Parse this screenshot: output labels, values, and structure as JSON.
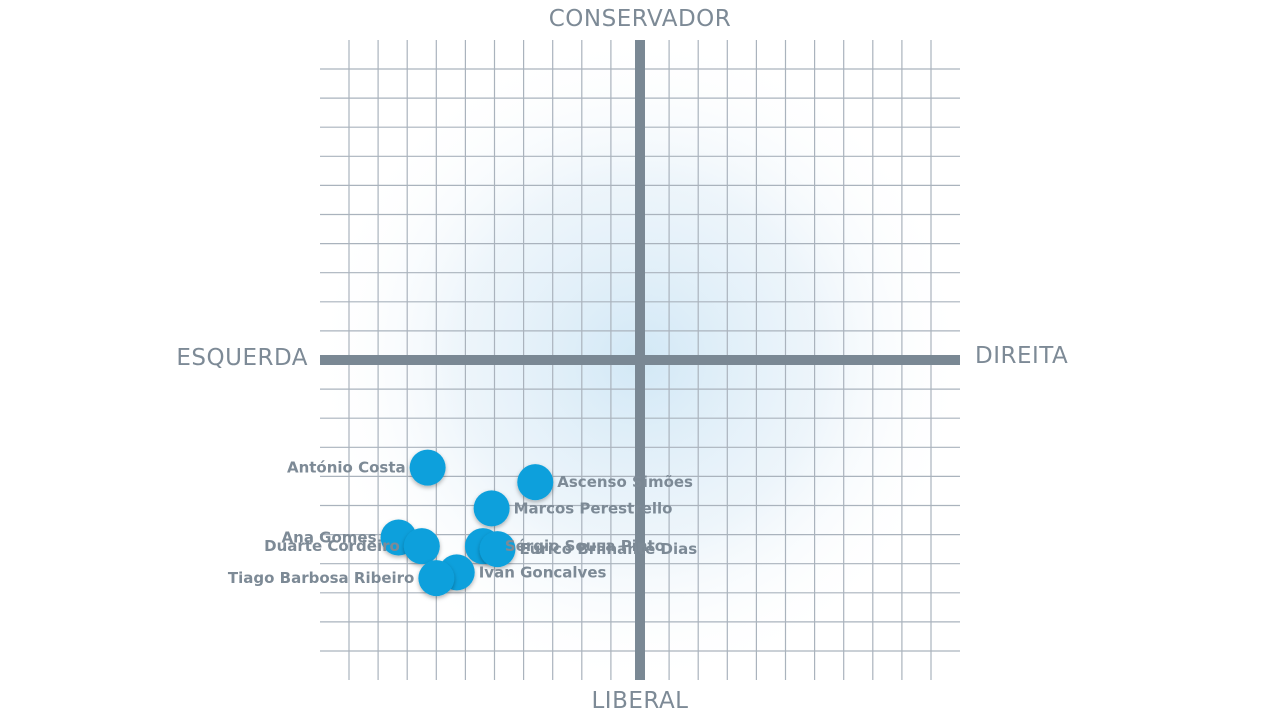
{
  "chart_data": {
    "type": "scatter",
    "title": "",
    "axes": {
      "top": "CONSERVADOR",
      "bottom": "LIBERAL",
      "left": "ESQUERDA",
      "right": "DIREITA"
    },
    "xlim": [
      -11,
      11
    ],
    "ylim": [
      -11,
      11
    ],
    "grid": true,
    "point_color": "#0aa0dc",
    "points": [
      {
        "name": "António Costa",
        "x": -7.3,
        "y": -3.7,
        "label_side": "left"
      },
      {
        "name": "Ascenso Simões",
        "x": -3.6,
        "y": -4.2,
        "label_side": "right"
      },
      {
        "name": "Marcos Perestrello",
        "x": -5.1,
        "y": -5.1,
        "label_side": "right"
      },
      {
        "name": "Sérgio Sousa Pinto",
        "x": -5.4,
        "y": -6.4,
        "label_side": "right"
      },
      {
        "name": "Eurico Brilhante Dias",
        "x": -4.9,
        "y": -6.5,
        "label_side": "right"
      },
      {
        "name": "Ana Gomes",
        "x": -8.3,
        "y": -6.1,
        "label_side": "left"
      },
      {
        "name": "Duarte Cordeiro",
        "x": -7.5,
        "y": -6.4,
        "label_side": "left"
      },
      {
        "name": "Ivan Goncalves",
        "x": -6.3,
        "y": -7.3,
        "label_side": "right"
      },
      {
        "name": "Tiago Barbosa Ribeiro",
        "x": -7.0,
        "y": -7.5,
        "label_side": "left"
      }
    ]
  }
}
